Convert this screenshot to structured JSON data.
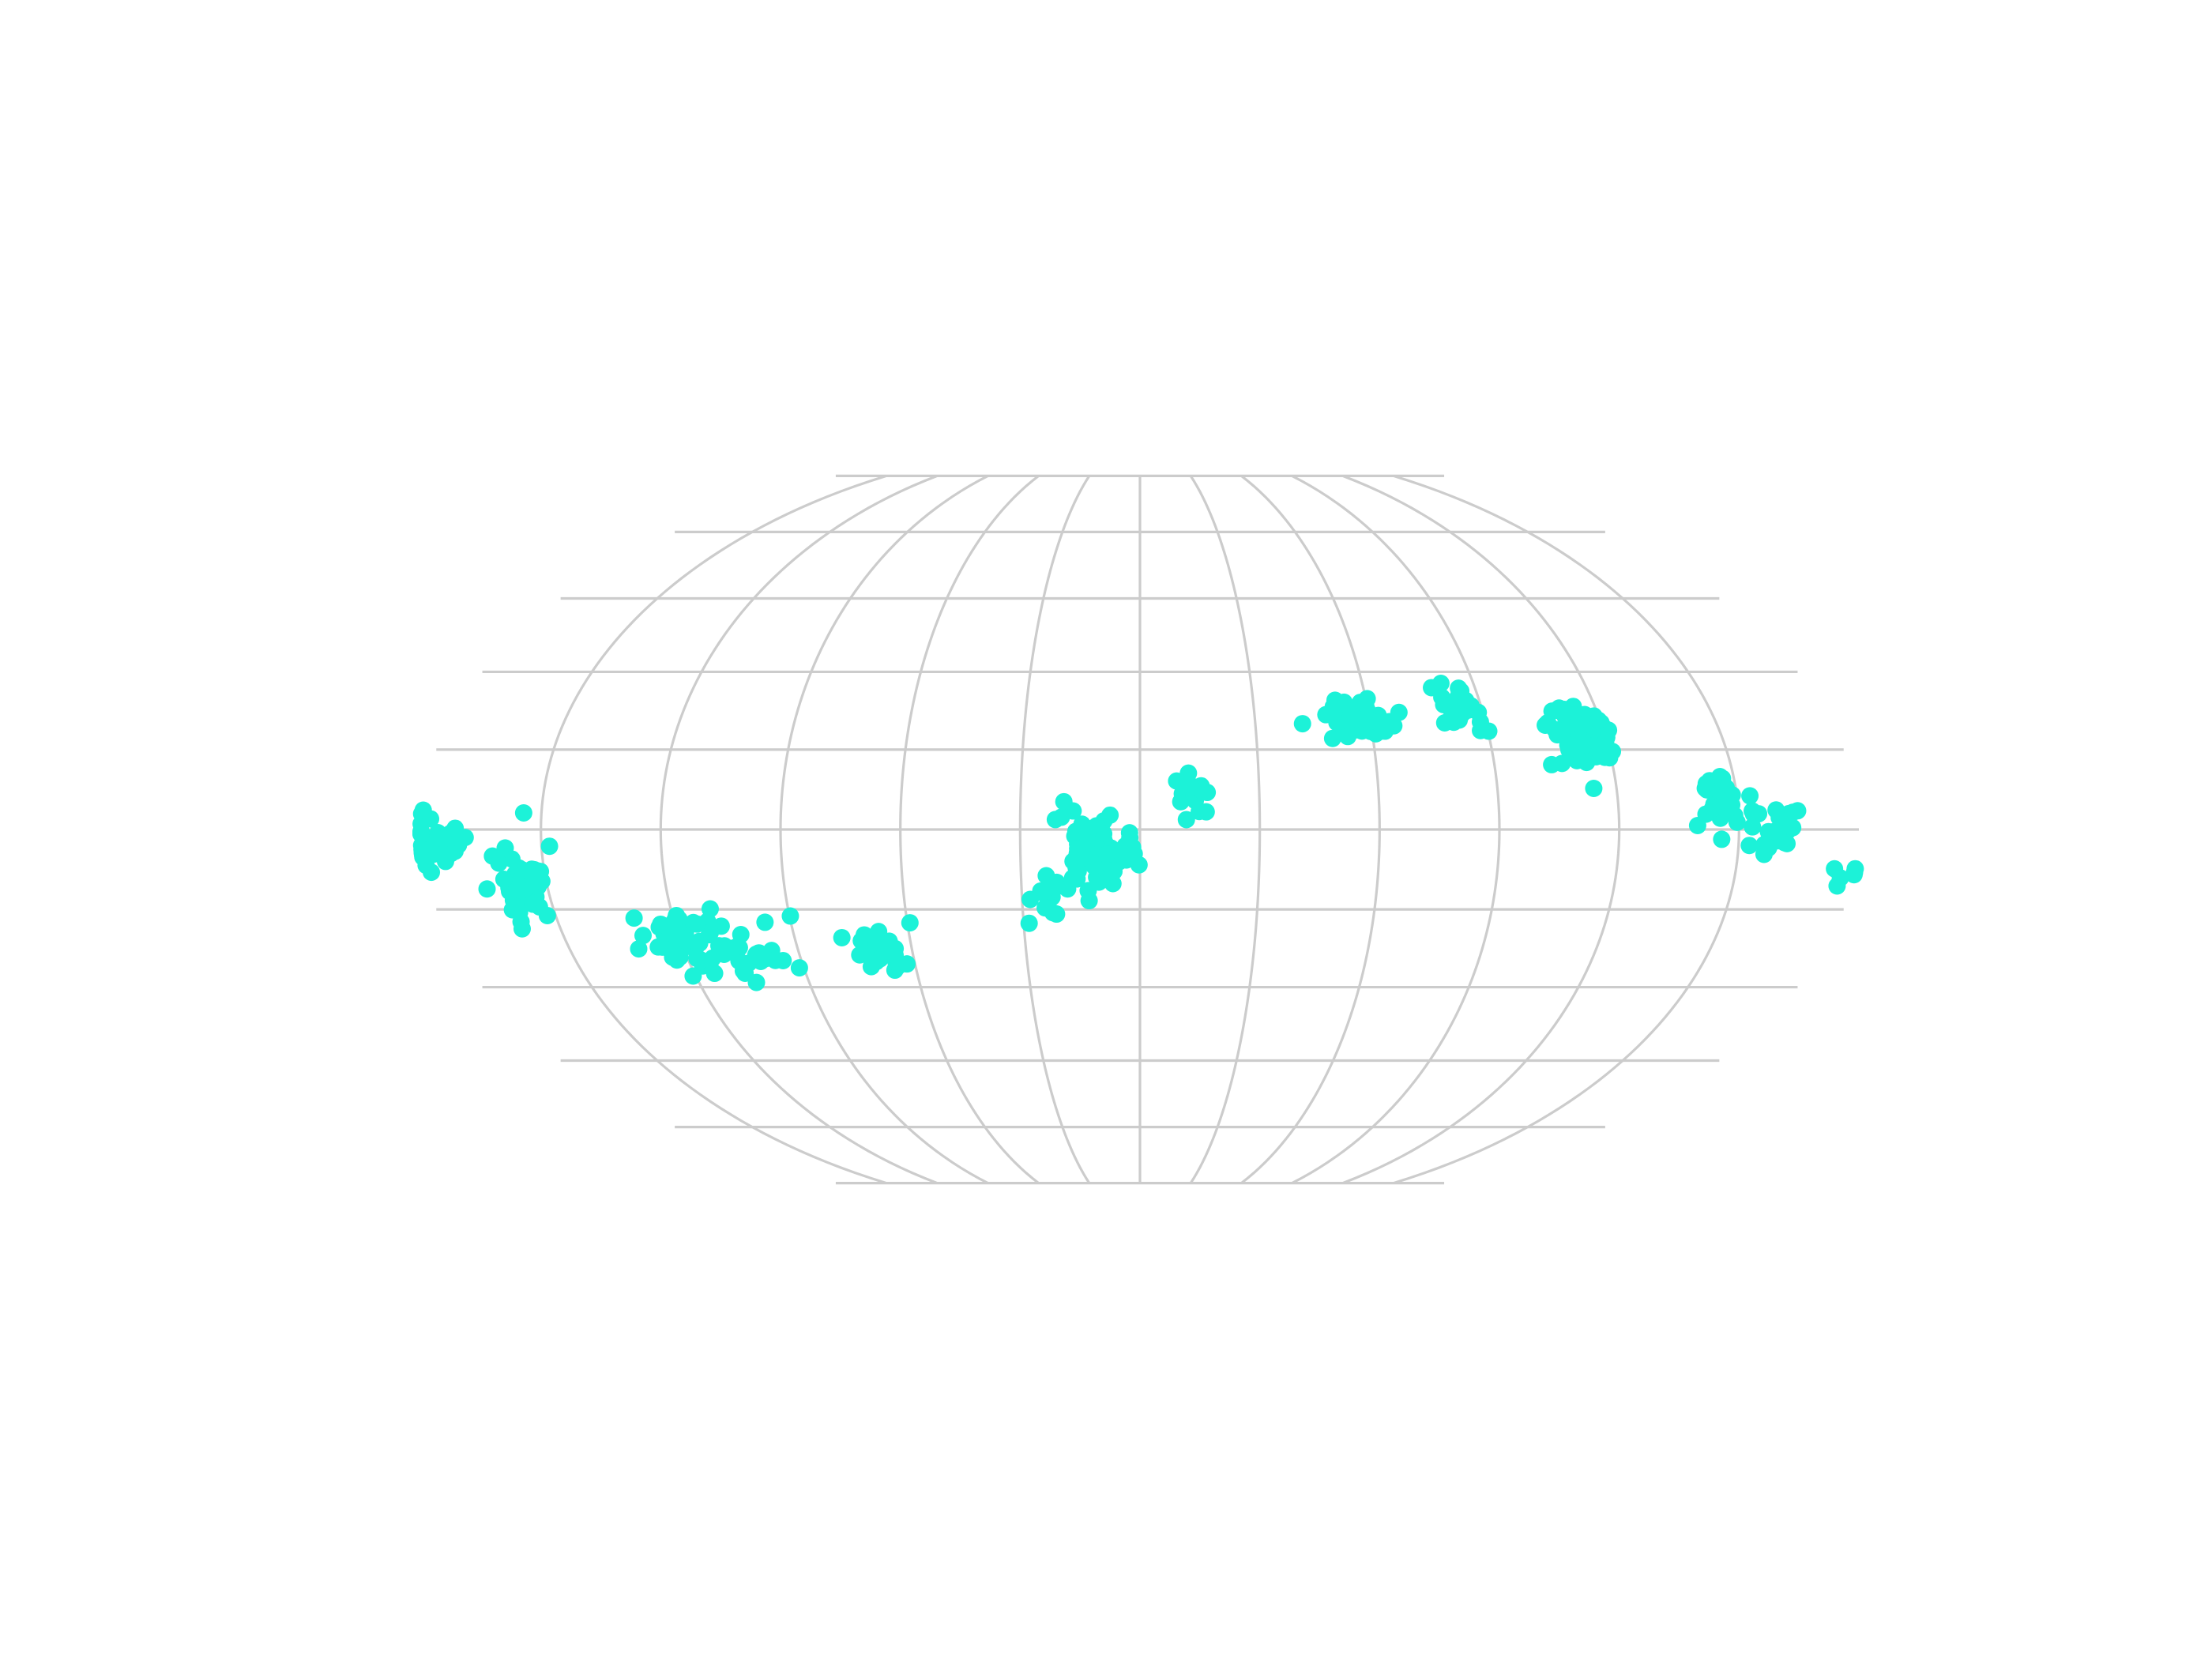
{
  "chart_data": {
    "type": "scatter",
    "projection": "mollweide",
    "title": "",
    "xlabel": "",
    "ylabel": "",
    "xlim": [
      -180,
      180
    ],
    "ylim": [
      -90,
      90
    ],
    "grid": true,
    "tick_labels_visible": false,
    "longitude_gridlines": [
      -150,
      -120,
      -90,
      -60,
      -30,
      0,
      30,
      60,
      90,
      120,
      150
    ],
    "latitude_gridlines": [
      -75,
      -60,
      -45,
      -30,
      -15,
      0,
      15,
      30,
      45,
      60,
      75
    ],
    "legend": "none",
    "colors": {
      "point": "#1cf2d8",
      "grid": "#cccccc",
      "background": "#ffffff"
    },
    "series": [
      {
        "clusters": [
          {
            "lon": -178.0,
            "lat": -3.0,
            "spread_lon": 5.0,
            "spread_lat": 2.6,
            "count": 38
          },
          {
            "lon": -155.0,
            "lat": -10.0,
            "spread_lon": 4.0,
            "spread_lat": 3.5,
            "count": 48
          },
          {
            "lon": -118.0,
            "lat": -20.5,
            "spread_lon": 6.0,
            "spread_lat": 2.4,
            "count": 42
          },
          {
            "lon": -103.0,
            "lat": -24.0,
            "spread_lon": 7.0,
            "spread_lat": 2.5,
            "count": 30
          },
          {
            "lon": -68.0,
            "lat": -23.0,
            "spread_lon": 4.0,
            "spread_lat": 2.6,
            "count": 28
          },
          {
            "lon": -24.0,
            "lat": -12.5,
            "spread_lon": 3.0,
            "spread_lat": 2.5,
            "count": 14
          },
          {
            "lon": -10.0,
            "lat": -4.5,
            "spread_lon": 4.0,
            "spread_lat": 3.5,
            "count": 90
          },
          {
            "lon": 13.0,
            "lat": 6.0,
            "spread_lon": 2.5,
            "spread_lat": 2.2,
            "count": 15
          },
          {
            "lon": 58.0,
            "lat": 21.0,
            "spread_lon": 5.0,
            "spread_lat": 2.5,
            "count": 40
          },
          {
            "lon": 84.0,
            "lat": 23.0,
            "spread_lon": 3.0,
            "spread_lat": 3.0,
            "count": 28
          },
          {
            "lon": 114.0,
            "lat": 17.5,
            "spread_lon": 4.0,
            "spread_lat": 3.0,
            "count": 85
          },
          {
            "lon": 147.0,
            "lat": 6.0,
            "spread_lon": 3.0,
            "spread_lat": 3.0,
            "count": 28
          },
          {
            "lon": 161.0,
            "lat": -1.0,
            "spread_lon": 5.0,
            "spread_lat": 2.6,
            "count": 22
          },
          {
            "lon": 178.0,
            "lat": -6.0,
            "spread_lon": 3.0,
            "spread_lat": 2.0,
            "count": 6
          }
        ]
      }
    ]
  }
}
